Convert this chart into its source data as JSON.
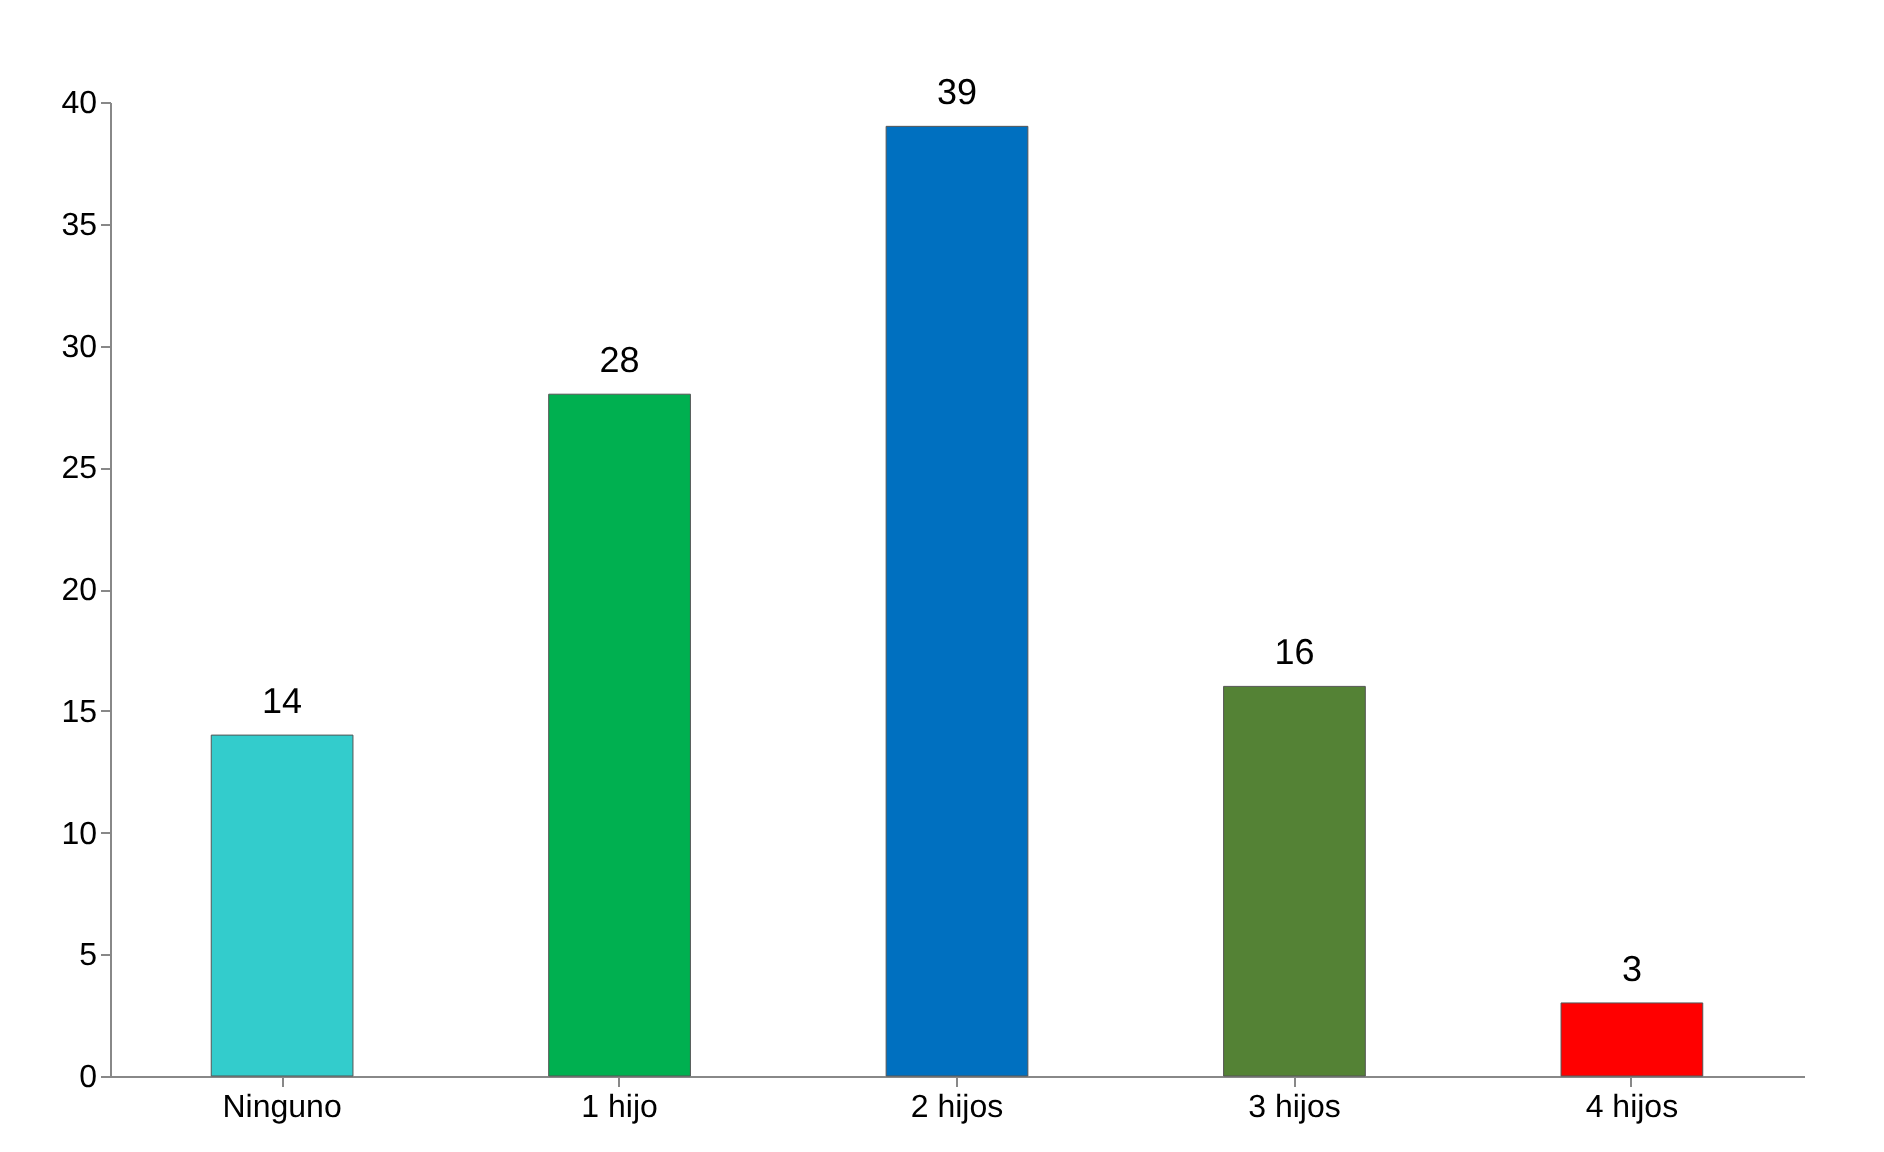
{
  "chart_data": {
    "type": "bar",
    "categories": [
      "Ninguno",
      "1 hijo",
      "2 hijos",
      "3 hijos",
      "4 hijos"
    ],
    "values": [
      14,
      28,
      39,
      16,
      3
    ],
    "colors": [
      "#33cccc",
      "#00b050",
      "#0070c0",
      "#548235",
      "#ff0000"
    ],
    "ylim": [
      0,
      40
    ],
    "yticks": [
      0,
      5,
      10,
      15,
      20,
      25,
      30,
      35,
      40
    ],
    "grid": false,
    "data_labels": true
  }
}
